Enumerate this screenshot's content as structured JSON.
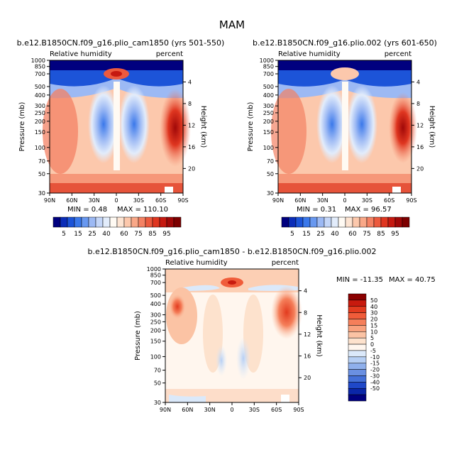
{
  "page": {
    "title": "MAM"
  },
  "panels": [
    {
      "case_title": "b.e12.B1850CN.f09_g16.plio_cam1850 (yrs 501-550)",
      "left_label": "Relative humidity",
      "right_label": "percent",
      "min_text": "MIN =   0.48",
      "max_text": "MAX = 110.10"
    },
    {
      "case_title": "b.e12.B1850CN.f09_g16.plio.002 (yrs 601-650)",
      "left_label": "Relative humidity",
      "right_label": "percent",
      "min_text": "MIN =   0.31",
      "max_text": "MAX =  96.57"
    },
    {
      "case_title": "b.e12.B1850CN.f09_g16.plio_cam1850 - b.e12.B1850CN.f09_g16.plio.002",
      "left_label": "Relative humidity",
      "right_label": "percent",
      "min_text": "MIN = -11.35",
      "max_text": "MAX =  40.75"
    }
  ],
  "axes": {
    "ylabel": "Pressure (mb)",
    "y2label": "Height (km)"
  },
  "colorbars": {
    "abs": {
      "labels": [
        "5",
        "15",
        "25",
        "40",
        "60",
        "75",
        "85",
        "95"
      ],
      "colors": [
        "#00007f",
        "#0b2db8",
        "#1c54d8",
        "#3a78ea",
        "#6898f0",
        "#9cb9f4",
        "#c4d6f8",
        "#e2ecfb",
        "#fffaf3",
        "#fde4d2",
        "#fcc8ac",
        "#f9a888",
        "#f48264",
        "#ec5a3e",
        "#df3620",
        "#c51910",
        "#a00808",
        "#7d0000"
      ]
    },
    "diff": {
      "labels": [
        "50",
        "40",
        "30",
        "20",
        "15",
        "10",
        "5",
        "0",
        "-5",
        "-10",
        "-15",
        "-20",
        "-30",
        "-40",
        "-50"
      ],
      "colors": [
        "#8b0000",
        "#c81a0e",
        "#e23b1f",
        "#f05c3a",
        "#f57f5a",
        "#f9a27e",
        "#fbc3a4",
        "#fde2cd",
        "#fff6ee",
        "#dbe9fa",
        "#b6cff4",
        "#8fb0ec",
        "#6a90e2",
        "#4470d8",
        "#1f48c8",
        "#0a26a8",
        "#00007f"
      ]
    }
  },
  "chart_data": [
    {
      "type": "heatmap",
      "title": "b.e12.B1850CN.f09_g16.plio_cam1850 (yrs 501-550)",
      "xlabel": "",
      "ylabel": "Pressure (mb)",
      "y2label": "Height (km)",
      "x_ticks": [
        "90N",
        "60N",
        "30N",
        "0",
        "30S",
        "60S",
        "90S"
      ],
      "y_ticks": [
        1000,
        850,
        700,
        500,
        400,
        300,
        250,
        200,
        150,
        100,
        70,
        50,
        30
      ],
      "y2_ticks": [
        4,
        8,
        12,
        16,
        20
      ],
      "ylim": [
        1000,
        30
      ],
      "log_scale_y": true,
      "min": 0.48,
      "max": 110.1,
      "units": "percent",
      "levels": [
        5,
        10,
        15,
        20,
        25,
        30,
        40,
        50,
        60,
        65,
        70,
        75,
        80,
        85,
        90,
        95,
        100
      ]
    },
    {
      "type": "heatmap",
      "title": "b.e12.B1850CN.f09_g16.plio.002 (yrs 601-650)",
      "xlabel": "",
      "ylabel": "Pressure (mb)",
      "y2label": "Height (km)",
      "x_ticks": [
        "90N",
        "60N",
        "30N",
        "0",
        "30S",
        "60S",
        "90S"
      ],
      "y_ticks": [
        1000,
        850,
        700,
        500,
        400,
        300,
        250,
        200,
        150,
        100,
        70,
        50,
        30
      ],
      "y2_ticks": [
        4,
        8,
        12,
        16,
        20
      ],
      "ylim": [
        1000,
        30
      ],
      "log_scale_y": true,
      "min": 0.31,
      "max": 96.57,
      "units": "percent",
      "levels": [
        5,
        10,
        15,
        20,
        25,
        30,
        40,
        50,
        60,
        65,
        70,
        75,
        80,
        85,
        90,
        95,
        100
      ]
    },
    {
      "type": "heatmap",
      "title": "b.e12.B1850CN.f09_g16.plio_cam1850 - b.e12.B1850CN.f09_g16.plio.002",
      "xlabel": "",
      "ylabel": "Pressure (mb)",
      "y2label": "Height (km)",
      "x_ticks": [
        "90N",
        "60N",
        "30N",
        "0",
        "30S",
        "60S",
        "90S"
      ],
      "y_ticks": [
        1000,
        850,
        700,
        500,
        400,
        300,
        250,
        200,
        150,
        100,
        70,
        50,
        30
      ],
      "y2_ticks": [
        4,
        8,
        12,
        16,
        20
      ],
      "ylim": [
        1000,
        30
      ],
      "log_scale_y": true,
      "min": -11.35,
      "max": 40.75,
      "units": "percent",
      "levels": [
        -50,
        -40,
        -30,
        -20,
        -15,
        -10,
        -5,
        0,
        5,
        10,
        15,
        20,
        30,
        40,
        50
      ]
    }
  ]
}
